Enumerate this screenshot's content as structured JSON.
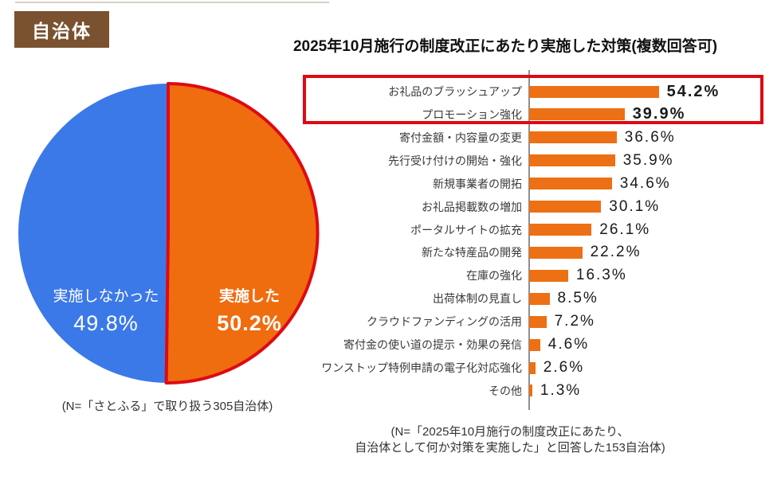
{
  "badge": {
    "label": "自治体"
  },
  "colors": {
    "badge_bg": "#7a5230",
    "bar_orange": "#ed7014",
    "pie_orange": "#ef6c0f",
    "pie_blue": "#3c79e8",
    "highlight_red": "#de0a13",
    "axis_gray": "#8f8f8f"
  },
  "chart_data": [
    {
      "type": "pie",
      "slices": [
        {
          "label": "実施した",
          "value": 50.2,
          "display": "50.2%",
          "color": "#ef6c0f",
          "emphasis": true
        },
        {
          "label": "実施しなかった",
          "value": 49.8,
          "display": "49.8%",
          "color": "#3c79e8",
          "emphasis": false
        }
      ],
      "start": "top",
      "direction": "clockwise",
      "outline": {
        "slice": "実施した",
        "color": "#de0a13",
        "width": 4
      },
      "note": "(N=「さとふる」で取り扱う305自治体)"
    },
    {
      "type": "bar",
      "orientation": "horizontal",
      "title": "2025年10月施行の制度改正にあたり実施した対策(複数回答可)",
      "unit": "%",
      "categories": [
        "お礼品のブラッシュアップ",
        "プロモーション強化",
        "寄付金額・内容量の変更",
        "先行受け付けの開始・強化",
        "新規事業者の開拓",
        "お礼品掲載数の増加",
        "ポータルサイトの拡充",
        "新たな特産品の開発",
        "在庫の強化",
        "出荷体制の見直し",
        "クラウドファンディングの活用",
        "寄付金の使い道の提示・効果の発信",
        "ワンストップ特例申請の電子化対応強化",
        "その他"
      ],
      "values": [
        54.2,
        39.9,
        36.6,
        35.9,
        34.6,
        30.1,
        26.1,
        22.2,
        16.3,
        8.5,
        7.2,
        4.6,
        2.6,
        1.3
      ],
      "xlim": [
        0,
        60
      ],
      "grid": false,
      "highlight": {
        "rows": [
          0,
          1
        ],
        "color": "#de0a13"
      },
      "note_lines": [
        "(N=「2025年10月施行の制度改正にあたり、",
        "自治体として何か対策を実施した」と回答した153自治体)"
      ]
    }
  ]
}
